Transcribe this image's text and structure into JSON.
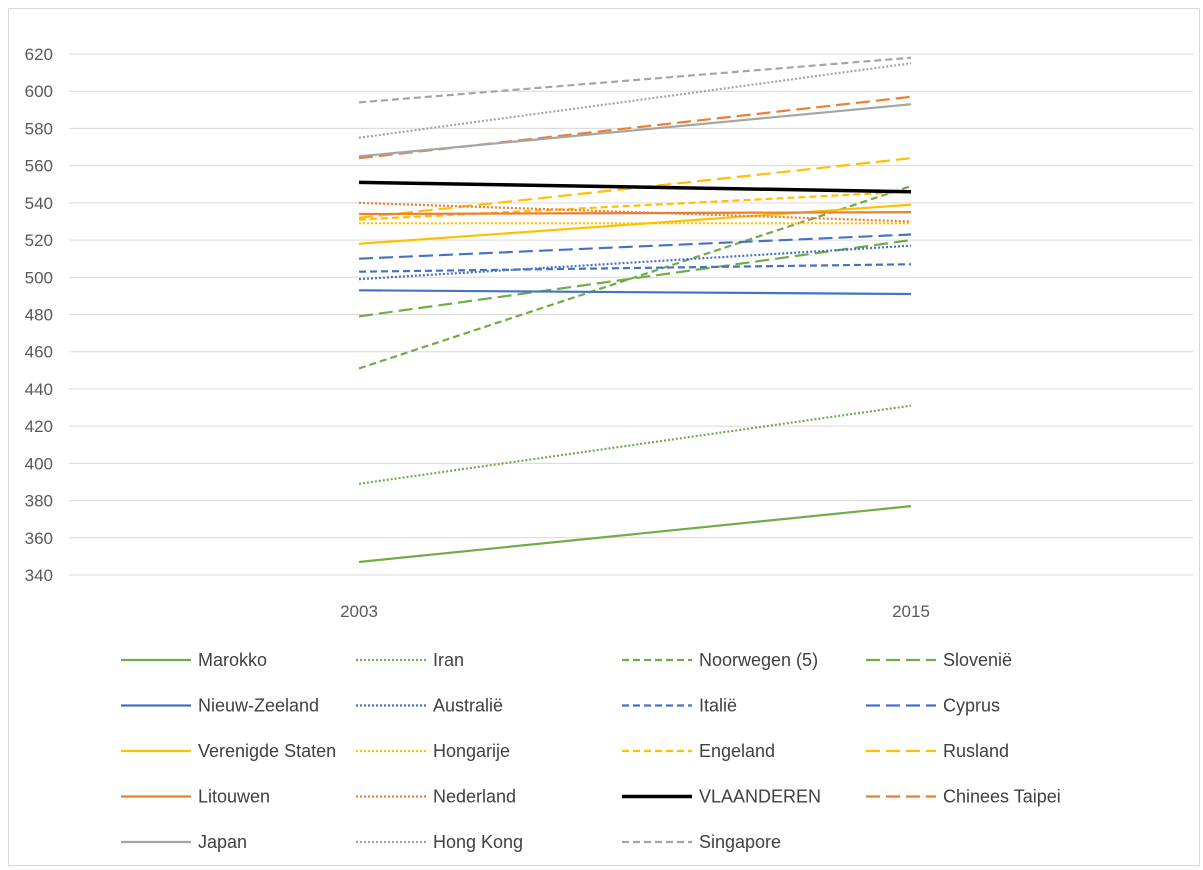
{
  "chart_data": {
    "type": "line",
    "categories": [
      "2003",
      "2015"
    ],
    "ylim": [
      340,
      620
    ],
    "ytick_step": 20,
    "grid": true,
    "legend_position": "bottom",
    "series": [
      {
        "name": "Marokko",
        "values": [
          347,
          377
        ],
        "color": "#70ad47",
        "dash": "solid"
      },
      {
        "name": "Iran",
        "values": [
          389,
          431
        ],
        "color": "#70ad47",
        "dash": "dot"
      },
      {
        "name": "Noorwegen (5)",
        "values": [
          451,
          549
        ],
        "color": "#70ad47",
        "dash": "dash"
      },
      {
        "name": "Slovenië",
        "values": [
          479,
          520
        ],
        "color": "#70ad47",
        "dash": "longdash"
      },
      {
        "name": "Nieuw-Zeeland",
        "values": [
          493,
          491
        ],
        "color": "#4472c4",
        "dash": "solid"
      },
      {
        "name": "Australië",
        "values": [
          499,
          517
        ],
        "color": "#4472c4",
        "dash": "dot"
      },
      {
        "name": "Italië",
        "values": [
          503,
          507
        ],
        "color": "#4472c4",
        "dash": "dash"
      },
      {
        "name": "Cyprus",
        "values": [
          510,
          523
        ],
        "color": "#4472c4",
        "dash": "longdash"
      },
      {
        "name": "Verenigde Staten",
        "values": [
          518,
          539
        ],
        "color": "#ffc000",
        "dash": "solid"
      },
      {
        "name": "Hongarije",
        "values": [
          529,
          529
        ],
        "color": "#ffc000",
        "dash": "dot"
      },
      {
        "name": "Engeland",
        "values": [
          531,
          546
        ],
        "color": "#ffc000",
        "dash": "dash"
      },
      {
        "name": "Rusland",
        "values": [
          532,
          564
        ],
        "color": "#ffc000",
        "dash": "longdash"
      },
      {
        "name": "Litouwen",
        "values": [
          534,
          535
        ],
        "color": "#ed7d31",
        "dash": "solid"
      },
      {
        "name": "Nederland",
        "values": [
          540,
          530
        ],
        "color": "#ed7d31",
        "dash": "dot"
      },
      {
        "name": "VLAANDEREN",
        "values": [
          551,
          546
        ],
        "color": "#000000",
        "dash": "solid",
        "bold": true
      },
      {
        "name": "Chinees Taipei",
        "values": [
          564,
          597
        ],
        "color": "#ed7d31",
        "dash": "longdash"
      },
      {
        "name": "Japan",
        "values": [
          565,
          593
        ],
        "color": "#a5a5a5",
        "dash": "solid"
      },
      {
        "name": "Hong Kong",
        "values": [
          575,
          615
        ],
        "color": "#a5a5a5",
        "dash": "dot"
      },
      {
        "name": "Singapore",
        "values": [
          594,
          618
        ],
        "color": "#a5a5a5",
        "dash": "dash"
      }
    ]
  }
}
